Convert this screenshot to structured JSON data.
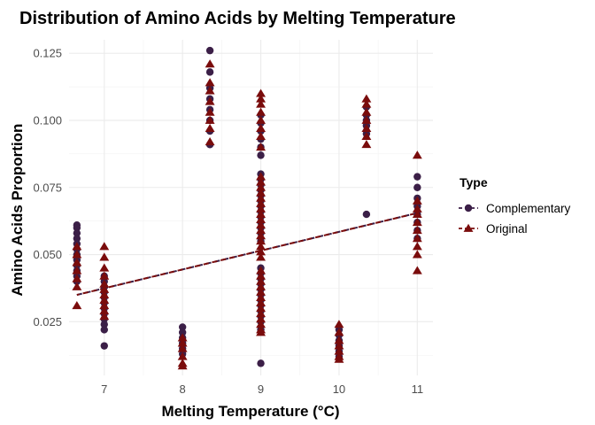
{
  "chart_data": {
    "type": "scatter",
    "title": "Distribution of Amino Acids by Melting Temperature",
    "xlabel": "Melting Temperature (°C)",
    "ylabel": "Amino Acids Proportion",
    "xlim": [
      6.55,
      11.2
    ],
    "ylim": [
      0.005,
      0.13
    ],
    "x_ticks": [
      7,
      8,
      9,
      10,
      11
    ],
    "y_ticks": [
      0.025,
      0.05,
      0.075,
      0.1,
      0.125
    ],
    "y_tick_labels": [
      "0.025",
      "0.050",
      "0.075",
      "0.100",
      "0.125"
    ],
    "grid": true,
    "legend": {
      "title": "Type",
      "position": "right",
      "entries": [
        "Complementary",
        "Original"
      ]
    },
    "series": [
      {
        "name": "Complementary",
        "marker": "circle",
        "color": "#3b1f47",
        "trend": {
          "x": [
            6.65,
            11.0
          ],
          "y": [
            0.035,
            0.0655
          ]
        },
        "points": [
          [
            6.65,
            0.061
          ],
          [
            6.65,
            0.06
          ],
          [
            6.65,
            0.058
          ],
          [
            6.65,
            0.056
          ],
          [
            6.65,
            0.054
          ],
          [
            6.65,
            0.052
          ],
          [
            6.65,
            0.05
          ],
          [
            6.65,
            0.048
          ],
          [
            6.65,
            0.046
          ],
          [
            6.65,
            0.044
          ],
          [
            6.65,
            0.042
          ],
          [
            6.65,
            0.04
          ],
          [
            7.0,
            0.042
          ],
          [
            7.0,
            0.04
          ],
          [
            7.0,
            0.038
          ],
          [
            7.0,
            0.036
          ],
          [
            7.0,
            0.034
          ],
          [
            7.0,
            0.032
          ],
          [
            7.0,
            0.03
          ],
          [
            7.0,
            0.028
          ],
          [
            7.0,
            0.026
          ],
          [
            7.0,
            0.024
          ],
          [
            7.0,
            0.022
          ],
          [
            7.0,
            0.016
          ],
          [
            8.0,
            0.023
          ],
          [
            8.0,
            0.021
          ],
          [
            8.0,
            0.019
          ],
          [
            8.0,
            0.017
          ],
          [
            8.0,
            0.015
          ],
          [
            8.0,
            0.013
          ],
          [
            8.35,
            0.126
          ],
          [
            8.35,
            0.118
          ],
          [
            8.35,
            0.112
          ],
          [
            8.35,
            0.108
          ],
          [
            8.35,
            0.104
          ],
          [
            8.35,
            0.1
          ],
          [
            8.35,
            0.096
          ],
          [
            8.35,
            0.091
          ],
          [
            9.0,
            0.102
          ],
          [
            9.0,
            0.099
          ],
          [
            9.0,
            0.096
          ],
          [
            9.0,
            0.093
          ],
          [
            9.0,
            0.09
          ],
          [
            9.0,
            0.087
          ],
          [
            9.0,
            0.08
          ],
          [
            9.0,
            0.078
          ],
          [
            9.0,
            0.076
          ],
          [
            9.0,
            0.074
          ],
          [
            9.0,
            0.072
          ],
          [
            9.0,
            0.07
          ],
          [
            9.0,
            0.068
          ],
          [
            9.0,
            0.066
          ],
          [
            9.0,
            0.064
          ],
          [
            9.0,
            0.062
          ],
          [
            9.0,
            0.06
          ],
          [
            9.0,
            0.058
          ],
          [
            9.0,
            0.055
          ],
          [
            9.0,
            0.045
          ],
          [
            9.0,
            0.043
          ],
          [
            9.0,
            0.041
          ],
          [
            9.0,
            0.039
          ],
          [
            9.0,
            0.037
          ],
          [
            9.0,
            0.035
          ],
          [
            9.0,
            0.033
          ],
          [
            9.0,
            0.031
          ],
          [
            9.0,
            0.029
          ],
          [
            9.0,
            0.027
          ],
          [
            9.0,
            0.025
          ],
          [
            9.0,
            0.022
          ],
          [
            9.0,
            0.0095
          ],
          [
            10.0,
            0.022
          ],
          [
            10.0,
            0.02
          ],
          [
            10.0,
            0.018
          ],
          [
            10.0,
            0.016
          ],
          [
            10.0,
            0.014
          ],
          [
            10.0,
            0.012
          ],
          [
            10.35,
            0.105
          ],
          [
            10.35,
            0.102
          ],
          [
            10.35,
            0.1
          ],
          [
            10.35,
            0.098
          ],
          [
            10.35,
            0.095
          ],
          [
            10.35,
            0.065
          ],
          [
            11.0,
            0.079
          ],
          [
            11.0,
            0.075
          ],
          [
            11.0,
            0.071
          ],
          [
            11.0,
            0.068
          ],
          [
            11.0,
            0.065
          ],
          [
            11.0,
            0.062
          ],
          [
            11.0,
            0.059
          ],
          [
            11.0,
            0.056
          ]
        ]
      },
      {
        "name": "Original",
        "marker": "triangle",
        "color": "#7a0c0c",
        "trend": {
          "x": [
            6.65,
            11.0
          ],
          "y": [
            0.035,
            0.0655
          ]
        },
        "points": [
          [
            6.65,
            0.053
          ],
          [
            6.65,
            0.05
          ],
          [
            6.65,
            0.047
          ],
          [
            6.65,
            0.044
          ],
          [
            6.65,
            0.041
          ],
          [
            6.65,
            0.038
          ],
          [
            6.65,
            0.031
          ],
          [
            7.0,
            0.053
          ],
          [
            7.0,
            0.049
          ],
          [
            7.0,
            0.045
          ],
          [
            7.0,
            0.042
          ],
          [
            7.0,
            0.039
          ],
          [
            7.0,
            0.037
          ],
          [
            7.0,
            0.035
          ],
          [
            7.0,
            0.033
          ],
          [
            7.0,
            0.031
          ],
          [
            7.0,
            0.029
          ],
          [
            7.0,
            0.027
          ],
          [
            8.0,
            0.019
          ],
          [
            8.0,
            0.017
          ],
          [
            8.0,
            0.015
          ],
          [
            8.0,
            0.012
          ],
          [
            8.0,
            0.0095
          ],
          [
            8.0,
            0.0085
          ],
          [
            8.35,
            0.121
          ],
          [
            8.35,
            0.114
          ],
          [
            8.35,
            0.111
          ],
          [
            8.35,
            0.107
          ],
          [
            8.35,
            0.103
          ],
          [
            8.35,
            0.1
          ],
          [
            8.35,
            0.097
          ],
          [
            8.35,
            0.092
          ],
          [
            9.0,
            0.11
          ],
          [
            9.0,
            0.108
          ],
          [
            9.0,
            0.106
          ],
          [
            9.0,
            0.103
          ],
          [
            9.0,
            0.1
          ],
          [
            9.0,
            0.097
          ],
          [
            9.0,
            0.094
          ],
          [
            9.0,
            0.09
          ],
          [
            9.0,
            0.079
          ],
          [
            9.0,
            0.077
          ],
          [
            9.0,
            0.075
          ],
          [
            9.0,
            0.073
          ],
          [
            9.0,
            0.071
          ],
          [
            9.0,
            0.069
          ],
          [
            9.0,
            0.067
          ],
          [
            9.0,
            0.065
          ],
          [
            9.0,
            0.063
          ],
          [
            9.0,
            0.061
          ],
          [
            9.0,
            0.059
          ],
          [
            9.0,
            0.057
          ],
          [
            9.0,
            0.055
          ],
          [
            9.0,
            0.053
          ],
          [
            9.0,
            0.051
          ],
          [
            9.0,
            0.049
          ],
          [
            9.0,
            0.044
          ],
          [
            9.0,
            0.042
          ],
          [
            9.0,
            0.04
          ],
          [
            9.0,
            0.038
          ],
          [
            9.0,
            0.036
          ],
          [
            9.0,
            0.034
          ],
          [
            9.0,
            0.032
          ],
          [
            9.0,
            0.03
          ],
          [
            9.0,
            0.028
          ],
          [
            9.0,
            0.026
          ],
          [
            9.0,
            0.024
          ],
          [
            9.0,
            0.022
          ],
          [
            9.0,
            0.021
          ],
          [
            10.0,
            0.024
          ],
          [
            10.0,
            0.021
          ],
          [
            10.0,
            0.018
          ],
          [
            10.0,
            0.016
          ],
          [
            10.0,
            0.014
          ],
          [
            10.0,
            0.012
          ],
          [
            10.0,
            0.011
          ],
          [
            10.35,
            0.108
          ],
          [
            10.35,
            0.106
          ],
          [
            10.35,
            0.103
          ],
          [
            10.35,
            0.1
          ],
          [
            10.35,
            0.097
          ],
          [
            10.35,
            0.094
          ],
          [
            10.35,
            0.091
          ],
          [
            11.0,
            0.087
          ],
          [
            11.0,
            0.07
          ],
          [
            11.0,
            0.067
          ],
          [
            11.0,
            0.065
          ],
          [
            11.0,
            0.062
          ],
          [
            11.0,
            0.059
          ],
          [
            11.0,
            0.056
          ],
          [
            11.0,
            0.053
          ],
          [
            11.0,
            0.05
          ],
          [
            11.0,
            0.044
          ]
        ]
      }
    ]
  }
}
